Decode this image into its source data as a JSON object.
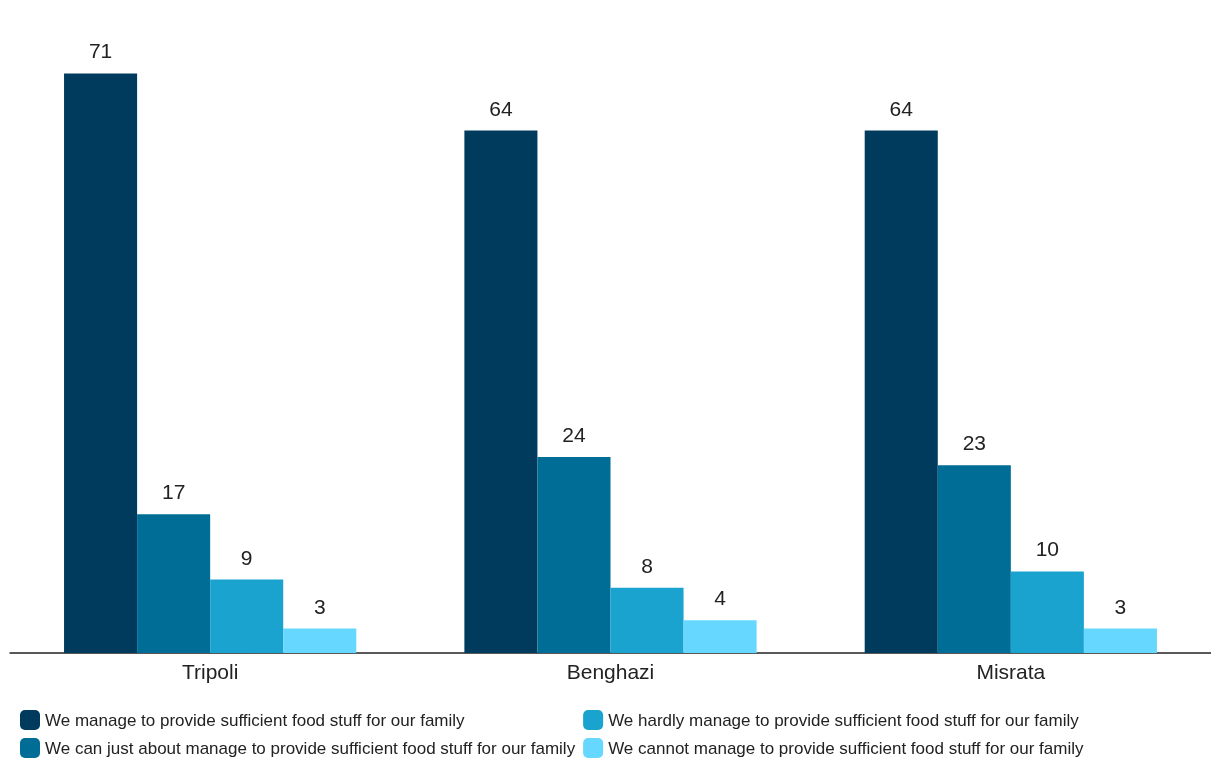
{
  "chart_data": {
    "type": "bar",
    "categories": [
      "Tripoli",
      "Benghazi",
      "Misrata"
    ],
    "series": [
      {
        "name": "We manage to provide sufficient food stuff for our family",
        "color": "#003a5d",
        "values": [
          71,
          64,
          64
        ]
      },
      {
        "name": "We can just about manage to provide sufficient food stuff for our family",
        "color": "#006d96",
        "values": [
          17,
          24,
          23
        ]
      },
      {
        "name": "We hardly manage to provide sufficient food stuff for our family",
        "color": "#1ba3d0",
        "values": [
          9,
          8,
          10
        ]
      },
      {
        "name": "We cannot manage to provide sufficient food stuff for our family",
        "color": "#66d8ff",
        "values": [
          3,
          4,
          3
        ]
      }
    ],
    "data_labels": true,
    "legend": "bottom"
  }
}
